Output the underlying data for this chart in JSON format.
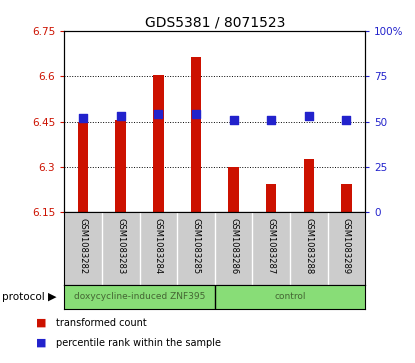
{
  "title": "GDS5381 / 8071523",
  "samples": [
    "GSM1083282",
    "GSM1083283",
    "GSM1083284",
    "GSM1083285",
    "GSM1083286",
    "GSM1083287",
    "GSM1083288",
    "GSM1083289"
  ],
  "transformed_counts": [
    6.45,
    6.455,
    6.605,
    6.665,
    6.3,
    6.245,
    6.325,
    6.245
  ],
  "percentile_ranks": [
    52,
    53,
    54,
    54,
    51,
    51,
    53,
    51
  ],
  "ylim_left": [
    6.15,
    6.75
  ],
  "ylim_right": [
    0,
    100
  ],
  "yticks_left": [
    6.15,
    6.3,
    6.45,
    6.6,
    6.75
  ],
  "yticks_right": [
    0,
    25,
    50,
    75,
    100
  ],
  "ytick_labels_left": [
    "6.15",
    "6.3",
    "6.45",
    "6.6",
    "6.75"
  ],
  "ytick_labels_right": [
    "0",
    "25",
    "50",
    "75",
    "100%"
  ],
  "bar_color": "#cc1100",
  "dot_color": "#2222cc",
  "bar_bottom": 6.15,
  "protocol_groups": [
    {
      "label": "doxycycline-induced ZNF395",
      "start": 0,
      "end": 4
    },
    {
      "label": "control",
      "start": 4,
      "end": 8
    }
  ],
  "protocol_label": "protocol",
  "legend_items": [
    {
      "color": "#cc1100",
      "label": "transformed count"
    },
    {
      "color": "#2222cc",
      "label": "percentile rank within the sample"
    }
  ],
  "tick_area_color": "#cccccc",
  "protocol_bar_color": "#88dd77",
  "bar_width": 0.28
}
